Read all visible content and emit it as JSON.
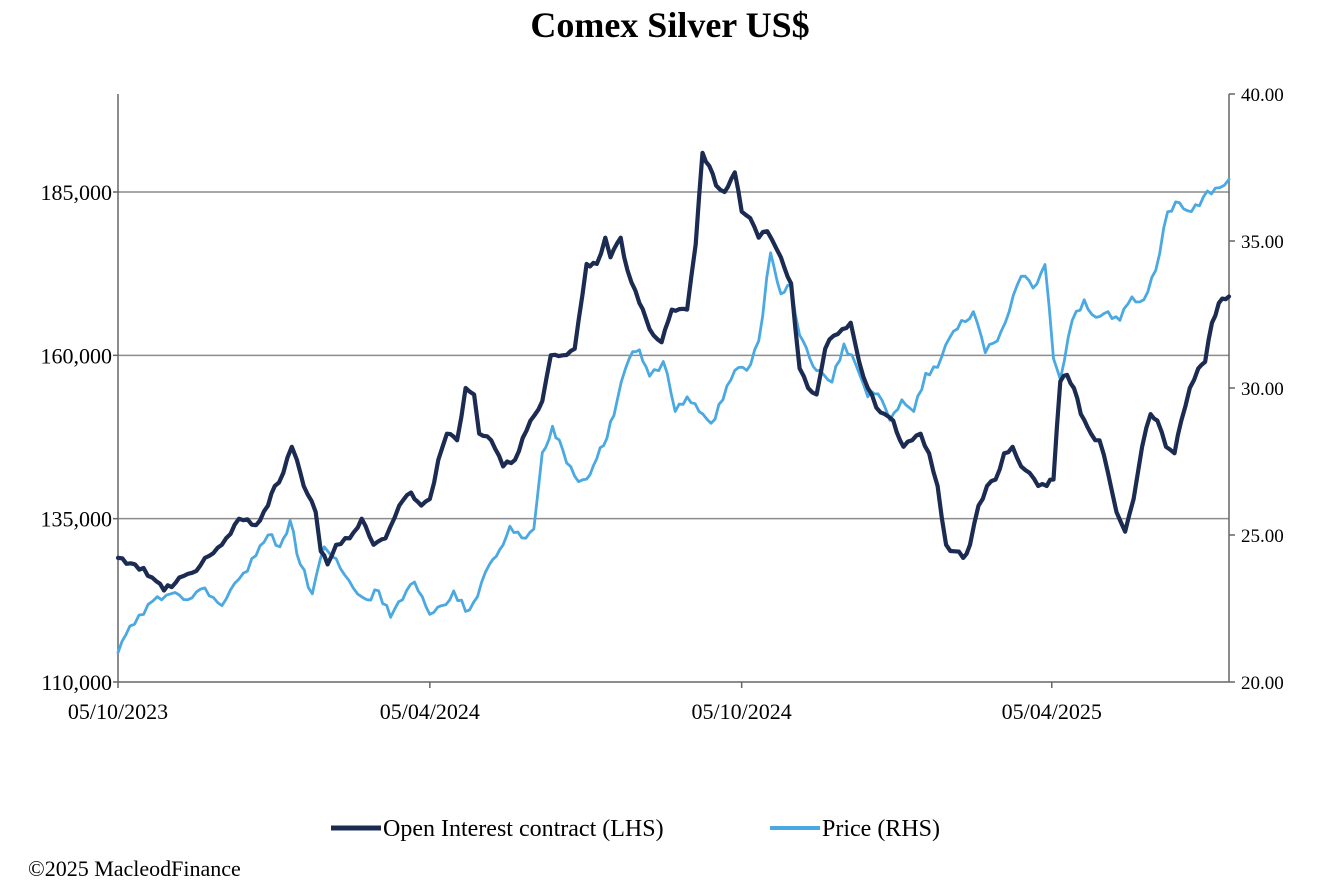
{
  "copyright": "©2025 MacleodFinance",
  "colors": {
    "open_interest": "#1c2b52",
    "price": "#4aa9e2",
    "grid": "#8c8c8c",
    "axis": "#666666"
  },
  "chart_data": {
    "type": "line",
    "title": "Comex Silver US$",
    "x_axis": {
      "type": "date",
      "range": [
        "2023-10-05",
        "2025-07-18"
      ],
      "ticks": [
        "05/10/2023",
        "05/04/2024",
        "05/10/2024",
        "05/04/2025"
      ],
      "tick_dates": [
        "2023-10-05",
        "2024-04-05",
        "2024-10-05",
        "2025-04-05"
      ]
    },
    "y_left": {
      "min": 110000,
      "max": 200000,
      "ticks": [
        "110,000",
        "135,000",
        "160,000",
        "185,000"
      ],
      "tick_values": [
        110000,
        135000,
        160000,
        185000
      ]
    },
    "y_right": {
      "min": 20,
      "max": 40,
      "ticks": [
        "20.00",
        "25.00",
        "30.00",
        "35.00",
        "40.00"
      ],
      "tick_values": [
        20,
        25,
        30,
        35,
        40
      ]
    },
    "grid": "horizontal at left-axis ticks",
    "legend": {
      "placement": "bottom"
    },
    "series": [
      {
        "name": "Open Interest contract (LHS)",
        "axis": "left",
        "color": "#1c2b52",
        "points": [
          [
            "2023-10-05",
            129000
          ],
          [
            "2023-10-15",
            128000
          ],
          [
            "2023-10-25",
            126000
          ],
          [
            "2023-11-01",
            124000
          ],
          [
            "2023-11-10",
            126000
          ],
          [
            "2023-11-20",
            127000
          ],
          [
            "2023-11-25",
            129000
          ],
          [
            "2023-12-05",
            131000
          ],
          [
            "2023-12-15",
            135000
          ],
          [
            "2023-12-25",
            134000
          ],
          [
            "2024-01-01",
            137000
          ],
          [
            "2024-01-05",
            140000
          ],
          [
            "2024-01-10",
            142000
          ],
          [
            "2024-01-15",
            146000
          ],
          [
            "2024-01-18",
            144000
          ],
          [
            "2024-01-22",
            140000
          ],
          [
            "2024-01-29",
            136000
          ],
          [
            "2024-02-01",
            130000
          ],
          [
            "2024-02-05",
            128000
          ],
          [
            "2024-02-10",
            131000
          ],
          [
            "2024-02-18",
            132000
          ],
          [
            "2024-02-25",
            135000
          ],
          [
            "2024-03-03",
            131000
          ],
          [
            "2024-03-10",
            132000
          ],
          [
            "2024-03-18",
            137000
          ],
          [
            "2024-03-25",
            139000
          ],
          [
            "2024-03-31",
            137000
          ],
          [
            "2024-04-05",
            138000
          ],
          [
            "2024-04-10",
            144000
          ],
          [
            "2024-04-15",
            148000
          ],
          [
            "2024-04-21",
            147000
          ],
          [
            "2024-04-26",
            155000
          ],
          [
            "2024-05-01",
            154000
          ],
          [
            "2024-05-04",
            148000
          ],
          [
            "2024-05-11",
            147000
          ],
          [
            "2024-05-18",
            143000
          ],
          [
            "2024-05-25",
            144000
          ],
          [
            "2024-06-03",
            150000
          ],
          [
            "2024-06-10",
            153000
          ],
          [
            "2024-06-15",
            160000
          ],
          [
            "2024-06-22",
            160000
          ],
          [
            "2024-06-29",
            161000
          ],
          [
            "2024-07-06",
            174000
          ],
          [
            "2024-07-12",
            174000
          ],
          [
            "2024-07-17",
            178000
          ],
          [
            "2024-07-20",
            175000
          ],
          [
            "2024-07-26",
            178000
          ],
          [
            "2024-07-30",
            173000
          ],
          [
            "2024-08-06",
            168000
          ],
          [
            "2024-08-12",
            164000
          ],
          [
            "2024-08-19",
            162000
          ],
          [
            "2024-08-25",
            167000
          ],
          [
            "2024-09-03",
            167000
          ],
          [
            "2024-09-08",
            177000
          ],
          [
            "2024-09-12",
            191000
          ],
          [
            "2024-09-16",
            189000
          ],
          [
            "2024-09-20",
            186000
          ],
          [
            "2024-09-25",
            185000
          ],
          [
            "2024-10-01",
            188000
          ],
          [
            "2024-10-05",
            182000
          ],
          [
            "2024-10-10",
            181000
          ],
          [
            "2024-10-15",
            178000
          ],
          [
            "2024-10-20",
            179000
          ],
          [
            "2024-10-28",
            175000
          ],
          [
            "2024-11-03",
            171000
          ],
          [
            "2024-11-08",
            158000
          ],
          [
            "2024-11-13",
            155000
          ],
          [
            "2024-11-18",
            154000
          ],
          [
            "2024-11-23",
            161000
          ],
          [
            "2024-11-28",
            163000
          ],
          [
            "2024-12-03",
            164000
          ],
          [
            "2024-12-08",
            165000
          ],
          [
            "2024-12-13",
            159000
          ],
          [
            "2024-12-18",
            155000
          ],
          [
            "2024-12-23",
            152000
          ],
          [
            "2024-12-28",
            151000
          ],
          [
            "2025-01-02",
            150000
          ],
          [
            "2025-01-08",
            146000
          ],
          [
            "2025-01-13",
            147000
          ],
          [
            "2025-01-18",
            148000
          ],
          [
            "2025-01-23",
            145000
          ],
          [
            "2025-01-28",
            140000
          ],
          [
            "2025-02-02",
            131000
          ],
          [
            "2025-02-07",
            130000
          ],
          [
            "2025-02-12",
            129000
          ],
          [
            "2025-02-16",
            131000
          ],
          [
            "2025-02-21",
            137000
          ],
          [
            "2025-02-26",
            140000
          ],
          [
            "2025-03-03",
            141000
          ],
          [
            "2025-03-08",
            145000
          ],
          [
            "2025-03-13",
            146000
          ],
          [
            "2025-03-18",
            143000
          ],
          [
            "2025-03-23",
            142000
          ],
          [
            "2025-03-28",
            140000
          ],
          [
            "2025-04-02",
            140000
          ],
          [
            "2025-04-06",
            141000
          ],
          [
            "2025-04-10",
            156000
          ],
          [
            "2025-04-14",
            157000
          ],
          [
            "2025-04-18",
            155000
          ],
          [
            "2025-04-22",
            151000
          ],
          [
            "2025-04-28",
            148000
          ],
          [
            "2025-05-03",
            147000
          ],
          [
            "2025-05-08",
            142000
          ],
          [
            "2025-05-13",
            136000
          ],
          [
            "2025-05-18",
            133000
          ],
          [
            "2025-05-23",
            138000
          ],
          [
            "2025-05-28",
            146000
          ],
          [
            "2025-06-02",
            151000
          ],
          [
            "2025-06-06",
            150000
          ],
          [
            "2025-06-11",
            146000
          ],
          [
            "2025-06-16",
            145000
          ],
          [
            "2025-06-20",
            150000
          ],
          [
            "2025-06-25",
            155000
          ],
          [
            "2025-06-30",
            158000
          ],
          [
            "2025-07-04",
            159000
          ],
          [
            "2025-07-08",
            165000
          ],
          [
            "2025-07-12",
            168000
          ],
          [
            "2025-07-18",
            169000
          ]
        ]
      },
      {
        "name": "Price (RHS)",
        "axis": "right",
        "color": "#4aa9e2",
        "points": [
          [
            "2023-10-05",
            21.0
          ],
          [
            "2023-10-12",
            21.9
          ],
          [
            "2023-10-20",
            22.3
          ],
          [
            "2023-10-28",
            22.9
          ],
          [
            "2023-11-05",
            23.0
          ],
          [
            "2023-11-15",
            22.8
          ],
          [
            "2023-11-25",
            23.2
          ],
          [
            "2023-12-05",
            22.6
          ],
          [
            "2023-12-15",
            23.5
          ],
          [
            "2023-12-25",
            24.3
          ],
          [
            "2024-01-01",
            25.0
          ],
          [
            "2024-01-08",
            24.6
          ],
          [
            "2024-01-14",
            25.5
          ],
          [
            "2024-01-20",
            24.0
          ],
          [
            "2024-01-27",
            23.0
          ],
          [
            "2024-02-03",
            24.6
          ],
          [
            "2024-02-10",
            24.2
          ],
          [
            "2024-02-20",
            23.2
          ],
          [
            "2024-02-28",
            22.8
          ],
          [
            "2024-03-06",
            23.1
          ],
          [
            "2024-03-13",
            22.2
          ],
          [
            "2024-03-20",
            22.8
          ],
          [
            "2024-03-27",
            23.4
          ],
          [
            "2024-04-05",
            22.3
          ],
          [
            "2024-04-12",
            22.6
          ],
          [
            "2024-04-19",
            23.1
          ],
          [
            "2024-04-26",
            22.4
          ],
          [
            "2024-05-03",
            22.9
          ],
          [
            "2024-05-10",
            24.0
          ],
          [
            "2024-05-16",
            24.5
          ],
          [
            "2024-05-22",
            25.3
          ],
          [
            "2024-05-29",
            24.9
          ],
          [
            "2024-06-05",
            25.2
          ],
          [
            "2024-06-10",
            27.8
          ],
          [
            "2024-06-16",
            28.7
          ],
          [
            "2024-06-22",
            27.9
          ],
          [
            "2024-06-29",
            27.0
          ],
          [
            "2024-07-06",
            26.9
          ],
          [
            "2024-07-12",
            27.6
          ],
          [
            "2024-07-18",
            28.3
          ],
          [
            "2024-07-24",
            29.6
          ],
          [
            "2024-07-31",
            31.0
          ],
          [
            "2024-08-06",
            31.3
          ],
          [
            "2024-08-12",
            30.4
          ],
          [
            "2024-08-20",
            30.9
          ],
          [
            "2024-08-27",
            29.2
          ],
          [
            "2024-09-03",
            29.7
          ],
          [
            "2024-09-10",
            29.2
          ],
          [
            "2024-09-17",
            28.8
          ],
          [
            "2024-09-24",
            29.6
          ],
          [
            "2024-10-01",
            30.6
          ],
          [
            "2024-10-08",
            30.6
          ],
          [
            "2024-10-15",
            31.6
          ],
          [
            "2024-10-22",
            34.6
          ],
          [
            "2024-10-28",
            33.2
          ],
          [
            "2024-11-03",
            33.5
          ],
          [
            "2024-11-08",
            31.8
          ],
          [
            "2024-11-14",
            31.0
          ],
          [
            "2024-11-20",
            30.6
          ],
          [
            "2024-11-27",
            30.2
          ],
          [
            "2024-12-04",
            31.5
          ],
          [
            "2024-12-11",
            30.8
          ],
          [
            "2024-12-18",
            29.7
          ],
          [
            "2024-12-24",
            29.8
          ],
          [
            "2024-12-31",
            28.9
          ],
          [
            "2025-01-07",
            29.6
          ],
          [
            "2025-01-14",
            29.2
          ],
          [
            "2025-01-21",
            30.5
          ],
          [
            "2025-01-28",
            30.7
          ],
          [
            "2025-02-04",
            31.7
          ],
          [
            "2025-02-11",
            32.3
          ],
          [
            "2025-02-18",
            32.6
          ],
          [
            "2025-02-25",
            31.2
          ],
          [
            "2025-03-04",
            31.6
          ],
          [
            "2025-03-11",
            32.6
          ],
          [
            "2025-03-18",
            33.8
          ],
          [
            "2025-03-25",
            33.4
          ],
          [
            "2025-04-01",
            34.2
          ],
          [
            "2025-04-06",
            31.0
          ],
          [
            "2025-04-10",
            30.3
          ],
          [
            "2025-04-17",
            32.3
          ],
          [
            "2025-04-24",
            33.0
          ],
          [
            "2025-05-01",
            32.4
          ],
          [
            "2025-05-08",
            32.6
          ],
          [
            "2025-05-15",
            32.3
          ],
          [
            "2025-05-22",
            33.1
          ],
          [
            "2025-05-29",
            33.0
          ],
          [
            "2025-06-05",
            34.0
          ],
          [
            "2025-06-12",
            36.0
          ],
          [
            "2025-06-19",
            36.3
          ],
          [
            "2025-06-26",
            36.0
          ],
          [
            "2025-07-03",
            36.5
          ],
          [
            "2025-07-10",
            36.8
          ],
          [
            "2025-07-18",
            37.1
          ]
        ]
      }
    ]
  }
}
